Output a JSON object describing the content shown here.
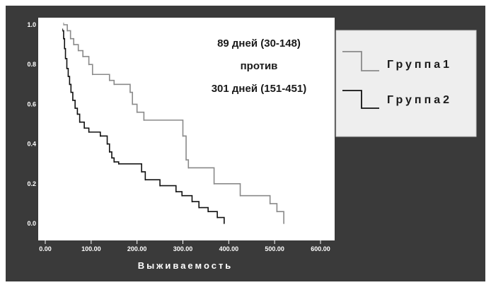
{
  "chart_data": {
    "type": "line",
    "subtype": "kaplan-meier step",
    "xlabel": "Выживаемость",
    "ylabel": "",
    "xlim": [
      0,
      600
    ],
    "ylim": [
      0,
      1.0
    ],
    "x_ticks": [
      "0.00",
      "100.00",
      "200.00",
      "300.00",
      "400.00",
      "500.00",
      "600.00"
    ],
    "y_ticks": [
      "0.0",
      "0.2",
      "0.4",
      "0.6",
      "0.8",
      "1.0"
    ],
    "grid": false,
    "legend_position": "right",
    "annotation_lines": [
      "89 дней (30-148)",
      "против",
      "301 дней (151-451)"
    ],
    "series": [
      {
        "name": "Группа1",
        "color": "#8a8a8a",
        "steps": [
          [
            40,
            1.0
          ],
          [
            48,
            0.97
          ],
          [
            55,
            0.93
          ],
          [
            62,
            0.9
          ],
          [
            72,
            0.87
          ],
          [
            82,
            0.84
          ],
          [
            95,
            0.8
          ],
          [
            103,
            0.75
          ],
          [
            140,
            0.72
          ],
          [
            150,
            0.7
          ],
          [
            185,
            0.66
          ],
          [
            190,
            0.6
          ],
          [
            200,
            0.56
          ],
          [
            215,
            0.52
          ],
          [
            300,
            0.44
          ],
          [
            307,
            0.32
          ],
          [
            312,
            0.28
          ],
          [
            368,
            0.2
          ],
          [
            425,
            0.14
          ],
          [
            490,
            0.1
          ],
          [
            505,
            0.06
          ],
          [
            520,
            0.0
          ]
        ]
      },
      {
        "name": "Группа2",
        "color": "#111111",
        "steps": [
          [
            38,
            0.97
          ],
          [
            40,
            0.93
          ],
          [
            42,
            0.88
          ],
          [
            44,
            0.83
          ],
          [
            47,
            0.78
          ],
          [
            50,
            0.74
          ],
          [
            53,
            0.7
          ],
          [
            56,
            0.66
          ],
          [
            60,
            0.62
          ],
          [
            65,
            0.58
          ],
          [
            70,
            0.55
          ],
          [
            75,
            0.51
          ],
          [
            85,
            0.48
          ],
          [
            95,
            0.46
          ],
          [
            120,
            0.44
          ],
          [
            135,
            0.4
          ],
          [
            140,
            0.36
          ],
          [
            145,
            0.33
          ],
          [
            150,
            0.31
          ],
          [
            160,
            0.3
          ],
          [
            210,
            0.26
          ],
          [
            218,
            0.22
          ],
          [
            250,
            0.19
          ],
          [
            285,
            0.16
          ],
          [
            298,
            0.14
          ],
          [
            320,
            0.11
          ],
          [
            335,
            0.08
          ],
          [
            355,
            0.06
          ],
          [
            375,
            0.03
          ],
          [
            390,
            0.0
          ]
        ]
      }
    ]
  }
}
